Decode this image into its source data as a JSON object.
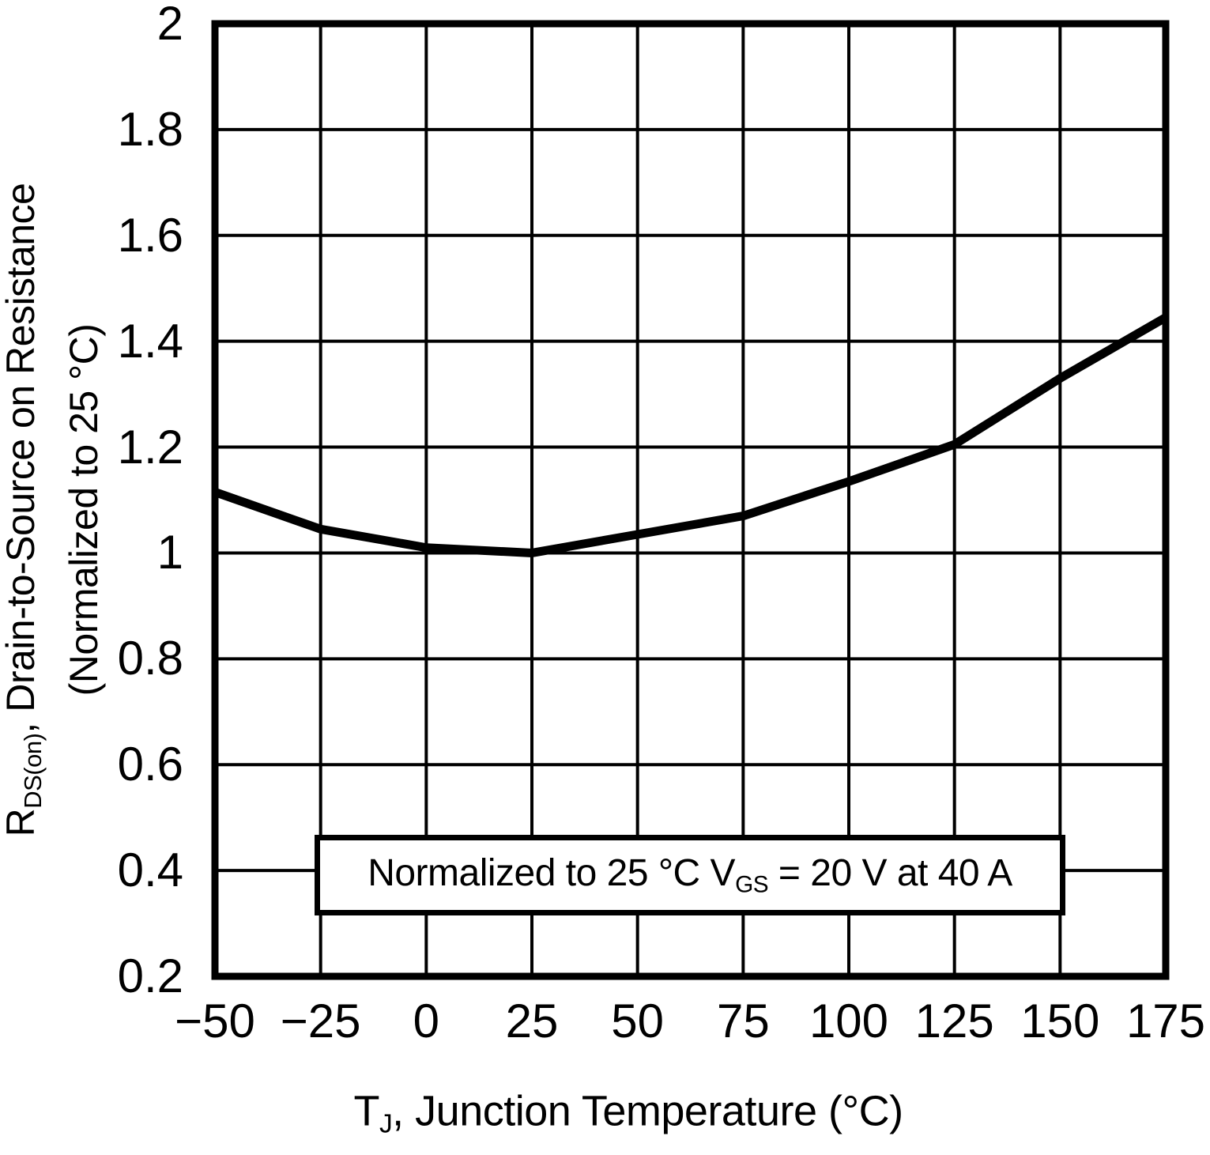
{
  "figure": {
    "background": "#ffffff",
    "ink": "#000000"
  },
  "chart_data": {
    "type": "line",
    "title": "",
    "xlabel": "T_J, Junction Temperature (°C)",
    "ylabel": "R_DS(on), Drain-to-Source on Resistance (Normalized to 25 °C)",
    "annotation": "Normalized to 25 °C V_GS = 20 V at 40 A",
    "x": [
      -50,
      -25,
      0,
      25,
      50,
      75,
      100,
      125,
      150,
      175
    ],
    "y": [
      1.115,
      1.045,
      1.01,
      1.0,
      1.035,
      1.07,
      1.135,
      1.205,
      1.33,
      1.445
    ],
    "xlim": [
      -50,
      175
    ],
    "ylim": [
      0.2,
      2
    ],
    "x_ticks": [
      -50,
      -25,
      0,
      25,
      50,
      75,
      100,
      125,
      150,
      175
    ],
    "x_tick_labels": [
      "−50",
      "−25",
      "0",
      "25",
      "50",
      "75",
      "100",
      "125",
      "150",
      "175"
    ],
    "y_ticks": [
      2,
      1.8,
      1.6,
      1.4,
      1.2,
      1,
      0.8,
      0.6,
      0.4,
      0.2
    ],
    "y_tick_labels": [
      "2",
      "1.8",
      "1.6",
      "1.4",
      "1.2",
      "1",
      "0.8",
      "0.6",
      "0.4",
      "0.2"
    ],
    "grid": true,
    "legend": null,
    "line_color": "#000000",
    "grid_color": "#000000"
  },
  "labels": {
    "y_title": {
      "pre": "R",
      "sub": "DS(on)",
      "post": ", Drain-to-Source on Resistance",
      "line2": "(Normalized to 25 °C)"
    },
    "x_title": {
      "pre": "T",
      "sub": "J",
      "post": ", Junction Temperature (°C)"
    },
    "annotation": {
      "pre": "Normalized to 25 °C V",
      "sub": "GS",
      "post": " = 20 V at 40 A"
    }
  }
}
